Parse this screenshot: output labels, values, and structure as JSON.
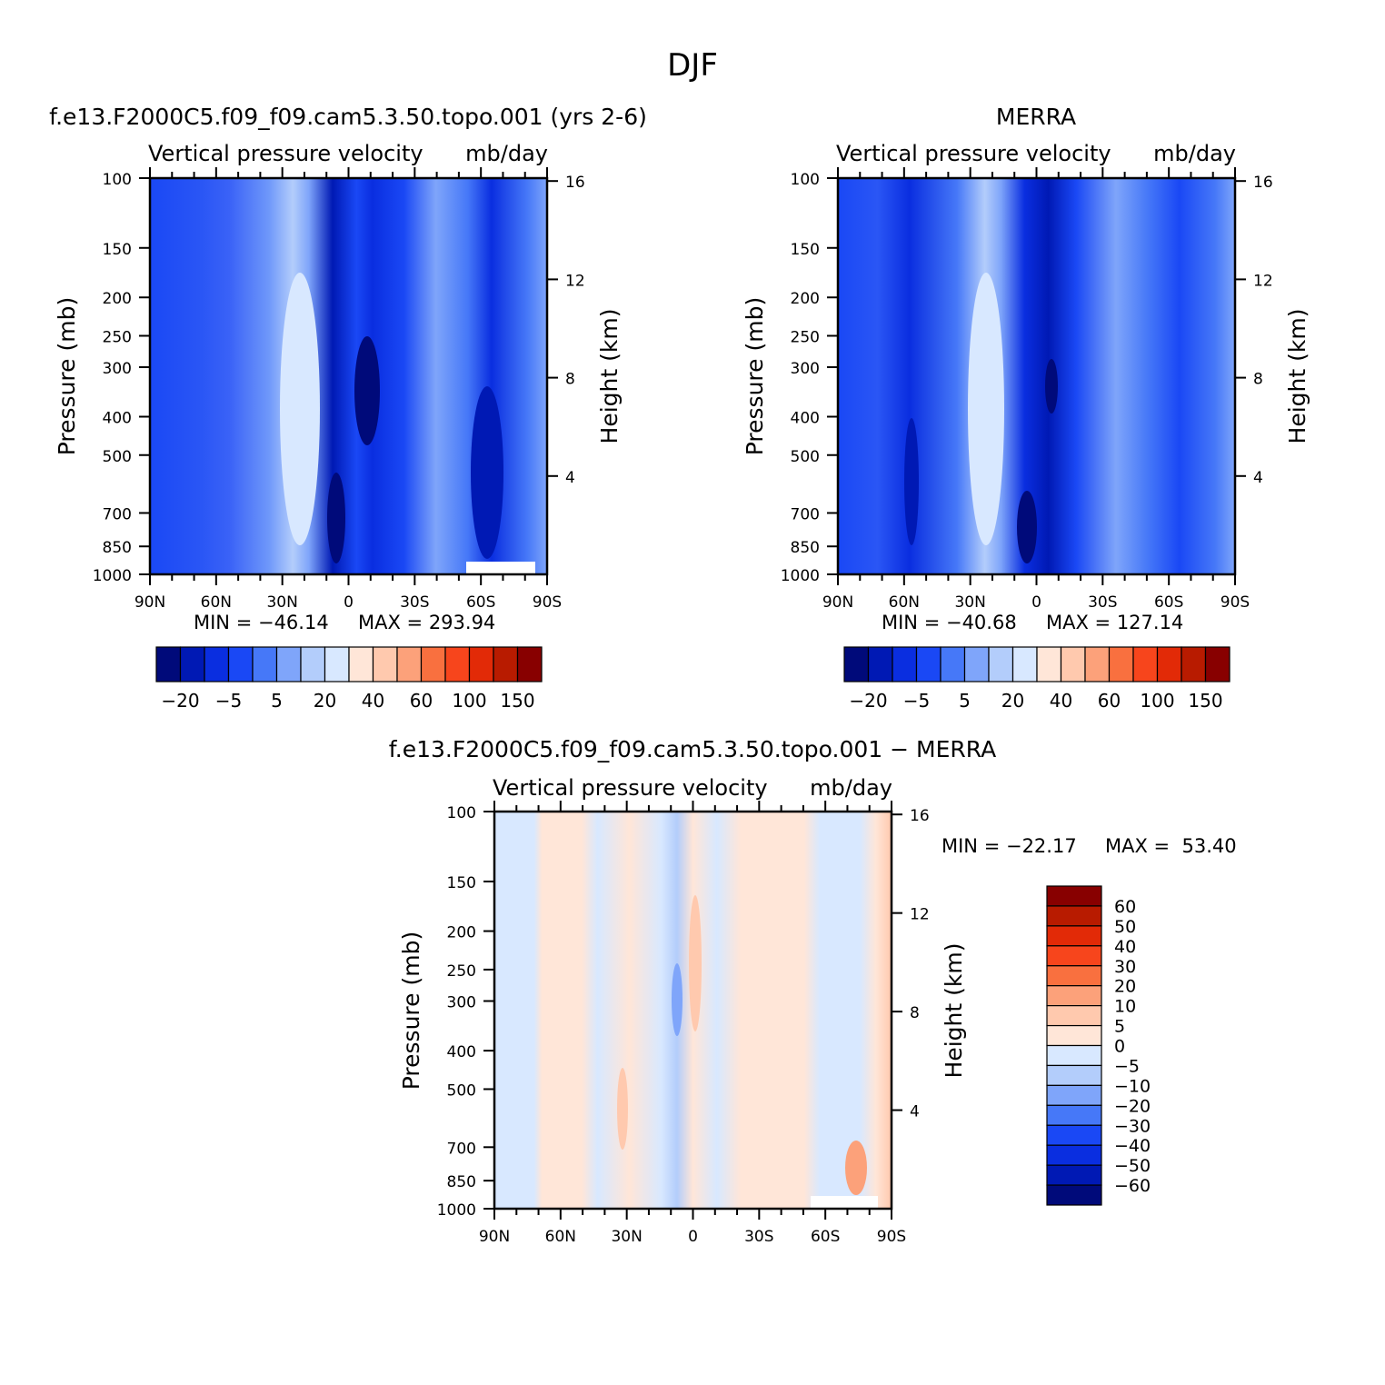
{
  "title": "DJF",
  "colors": {
    "main_levels": [
      "#000a7a",
      "#0019b4",
      "#0a2ee0",
      "#1a48f5",
      "#4678f8",
      "#7fa5fa",
      "#b3cdfb",
      "#d8e8ff",
      "#ffe6d8",
      "#ffc9ae",
      "#fca17a",
      "#f9703f",
      "#f7451c",
      "#e22a07",
      "#b81b00",
      "#880000"
    ],
    "diff_levels": [
      "#000a7a",
      "#0019b4",
      "#0a2ee0",
      "#1a48f5",
      "#4678f8",
      "#7fa5fa",
      "#b3cdfb",
      "#d8e8ff",
      "#ffe6d8",
      "#ffc9ae",
      "#fca17a",
      "#f9703f",
      "#f7451c",
      "#e22a07",
      "#b81b00",
      "#880000"
    ]
  },
  "chart_data": [
    {
      "type": "heatmap",
      "title": "f.e13.F2000C5.f09_f09.cam5.3.50.topo.001 (yrs 2-6)",
      "subtitle_left": "Vertical pressure velocity",
      "subtitle_right": "mb/day",
      "ylabel": "Pressure (mb)",
      "y2label": "Height (km)",
      "xticks": [
        "90N",
        "60N",
        "30N",
        "0",
        "30S",
        "60S",
        "90S"
      ],
      "yticks": [
        "100",
        "150",
        "200",
        "250",
        "300",
        "400",
        "500",
        "700",
        "850",
        "1000"
      ],
      "y2ticks": [
        "16",
        "12",
        "8",
        "4"
      ],
      "min_label": "MIN = −46.14",
      "max_label": "MAX = 293.94",
      "colorbar_labels": [
        "−20",
        "−5",
        "5",
        "20",
        "40",
        "60",
        "100",
        "150"
      ]
    },
    {
      "type": "heatmap",
      "title": "MERRA",
      "subtitle_left": "Vertical pressure velocity",
      "subtitle_right": "mb/day",
      "ylabel": "Pressure (mb)",
      "y2label": "Height (km)",
      "xticks": [
        "90N",
        "60N",
        "30N",
        "0",
        "30S",
        "60S",
        "90S"
      ],
      "yticks": [
        "100",
        "150",
        "200",
        "250",
        "300",
        "400",
        "500",
        "700",
        "850",
        "1000"
      ],
      "y2ticks": [
        "16",
        "12",
        "8",
        "4"
      ],
      "min_label": "MIN = −40.68",
      "max_label": "MAX = 127.14",
      "colorbar_labels": [
        "−20",
        "−5",
        "5",
        "20",
        "40",
        "60",
        "100",
        "150"
      ]
    },
    {
      "type": "heatmap",
      "title": "f.e13.F2000C5.f09_f09.cam5.3.50.topo.001 − MERRA",
      "subtitle_left": "Vertical pressure velocity",
      "subtitle_right": "mb/day",
      "ylabel": "Pressure (mb)",
      "y2label": "Height (km)",
      "xticks": [
        "90N",
        "60N",
        "30N",
        "0",
        "30S",
        "60S",
        "90S"
      ],
      "yticks": [
        "100",
        "150",
        "200",
        "250",
        "300",
        "400",
        "500",
        "700",
        "850",
        "1000"
      ],
      "y2ticks": [
        "16",
        "12",
        "8",
        "4"
      ],
      "min_label": "MIN = −22.17",
      "max_label": "MAX =  53.40",
      "colorbar_labels": [
        "60",
        "50",
        "40",
        "30",
        "20",
        "10",
        "5",
        "0",
        "−5",
        "−10",
        "−20",
        "−30",
        "−40",
        "−50",
        "−60"
      ]
    }
  ]
}
